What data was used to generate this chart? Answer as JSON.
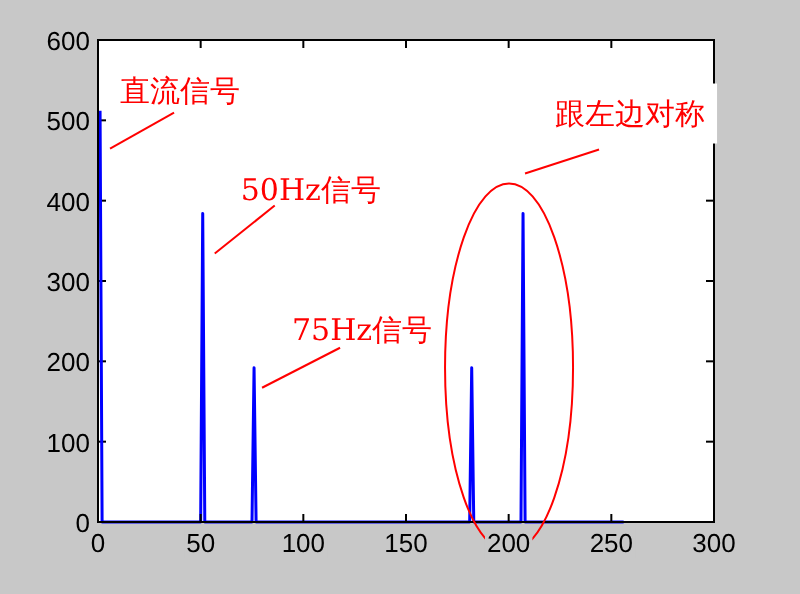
{
  "chart_data": {
    "type": "line",
    "xlim": [
      0,
      300
    ],
    "ylim": [
      0,
      600
    ],
    "xticks": [
      0,
      50,
      100,
      150,
      200,
      250,
      300
    ],
    "yticks": [
      0,
      100,
      200,
      300,
      400,
      500,
      600
    ],
    "grid": false,
    "marker": "none",
    "line_style": "solid",
    "series": [
      {
        "color": "#0000ff",
        "x": [
          1,
          2,
          50,
          51,
          52,
          75,
          76,
          77,
          181,
          182,
          183,
          206,
          207,
          208,
          256
        ],
        "values": [
          512,
          0,
          0,
          384,
          0,
          0,
          192,
          0,
          0,
          192,
          0,
          0,
          384,
          0,
          0
        ]
      }
    ],
    "annotations": [
      {
        "text": "直流信号",
        "x": 1,
        "y": 512
      },
      {
        "text": "50Hz信号",
        "x": 51,
        "y": 384
      },
      {
        "text": "75Hz信号",
        "x": 76,
        "y": 192
      },
      {
        "text": "跟左边对称",
        "x": 207,
        "y": 384
      }
    ]
  }
}
